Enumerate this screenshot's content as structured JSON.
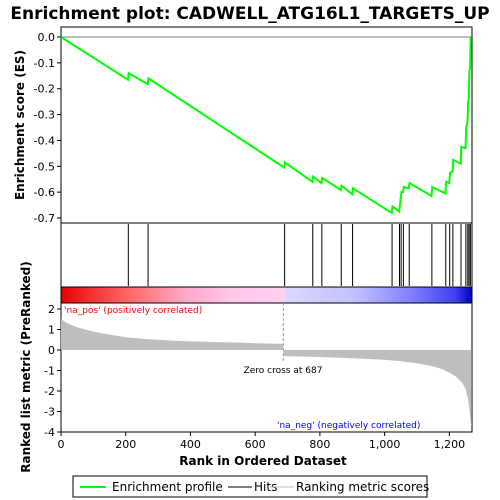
{
  "chart_data": {
    "type": "line",
    "title": "Enrichment plot: CADWELL_ATG16L1_TARGETS_UP",
    "xlabel": "Rank in Ordered Dataset",
    "ylabel_top": "Enrichment score (ES)",
    "ylabel_bottom": "Ranked list metric (PreRanked)",
    "xlim": [
      0,
      1270
    ],
    "x_ticks": [
      0,
      200,
      400,
      600,
      800,
      1000,
      1200
    ],
    "x_tick_labels": [
      "0",
      "200",
      "400",
      "600",
      "800",
      "1,000",
      "1,200"
    ],
    "es_ylim": [
      -0.7,
      0.0
    ],
    "es_ticks": [
      0.0,
      -0.1,
      -0.2,
      -0.3,
      -0.4,
      -0.5,
      -0.6,
      -0.7
    ],
    "es_tick_labels": [
      "0.0",
      "-0.1",
      "-0.2",
      "-0.3",
      "-0.4",
      "-0.5",
      "-0.6",
      "-0.7"
    ],
    "metric_ylim": [
      -4,
      2
    ],
    "metric_ticks": [
      2,
      1,
      0,
      -1,
      -2,
      -3,
      -4
    ],
    "metric_tick_labels": [
      "2",
      "1",
      "0",
      "-1",
      "-2",
      "-3",
      "-4"
    ],
    "series": [
      {
        "name": "Enrichment profile",
        "color": "#00ff00",
        "x": [
          0,
          207,
          209,
          268,
          270,
          690,
          692,
          777,
          779,
          805,
          807,
          865,
          867,
          900,
          902,
          1022,
          1024,
          1045,
          1047,
          1050,
          1052,
          1057,
          1059,
          1075,
          1077,
          1145,
          1147,
          1188,
          1190,
          1200,
          1202,
          1210,
          1212,
          1235,
          1237,
          1250,
          1252,
          1256,
          1258,
          1260,
          1262,
          1264,
          1266
        ],
        "y": [
          0.0,
          -0.165,
          -0.14,
          -0.182,
          -0.16,
          -0.505,
          -0.485,
          -0.56,
          -0.54,
          -0.565,
          -0.545,
          -0.592,
          -0.575,
          -0.608,
          -0.585,
          -0.68,
          -0.655,
          -0.675,
          -0.655,
          -0.62,
          -0.6,
          -0.6,
          -0.58,
          -0.585,
          -0.565,
          -0.615,
          -0.58,
          -0.605,
          -0.56,
          -0.565,
          -0.525,
          -0.52,
          -0.475,
          -0.49,
          -0.425,
          -0.43,
          -0.35,
          -0.33,
          -0.25,
          -0.24,
          -0.13,
          -0.12,
          0.0
        ]
      },
      {
        "name": "Hits",
        "color": "#000000",
        "positions": [
          208,
          269,
          691,
          778,
          806,
          866,
          901,
          1023,
          1046,
          1051,
          1058,
          1076,
          1146,
          1189,
          1201,
          1211,
          1236,
          1251,
          1257,
          1261,
          1265
        ]
      },
      {
        "name": "Ranking metric scores",
        "color": "#bebebe",
        "x": [
          0,
          20,
          50,
          100,
          150,
          200,
          250,
          300,
          350,
          400,
          450,
          500,
          550,
          600,
          650,
          686,
          688,
          750,
          800,
          850,
          900,
          950,
          1000,
          1050,
          1100,
          1150,
          1180,
          1200,
          1220,
          1240,
          1250,
          1258,
          1262,
          1266,
          1269
        ],
        "y": [
          1.5,
          1.3,
          1.1,
          0.9,
          0.75,
          0.62,
          0.55,
          0.5,
          0.45,
          0.42,
          0.4,
          0.38,
          0.36,
          0.33,
          0.31,
          0.3,
          -0.3,
          -0.32,
          -0.34,
          -0.37,
          -0.4,
          -0.44,
          -0.48,
          -0.55,
          -0.65,
          -0.8,
          -0.95,
          -1.1,
          -1.3,
          -1.6,
          -1.9,
          -2.4,
          -2.9,
          -3.5,
          -3.7
        ]
      }
    ],
    "annotations": {
      "pos_label": "'na_pos' (positively correlated)",
      "neg_label": "'na_neg' (negatively correlated)",
      "zero_cross": "Zero cross at 687",
      "pos_color": "#ff0000",
      "neg_color": "#0000ff",
      "zero_cross_at": 687
    },
    "legend": {
      "placement": "bottom",
      "entries": [
        "Enrichment profile",
        "Hits",
        "Ranking metric scores"
      ]
    },
    "grid": false
  }
}
